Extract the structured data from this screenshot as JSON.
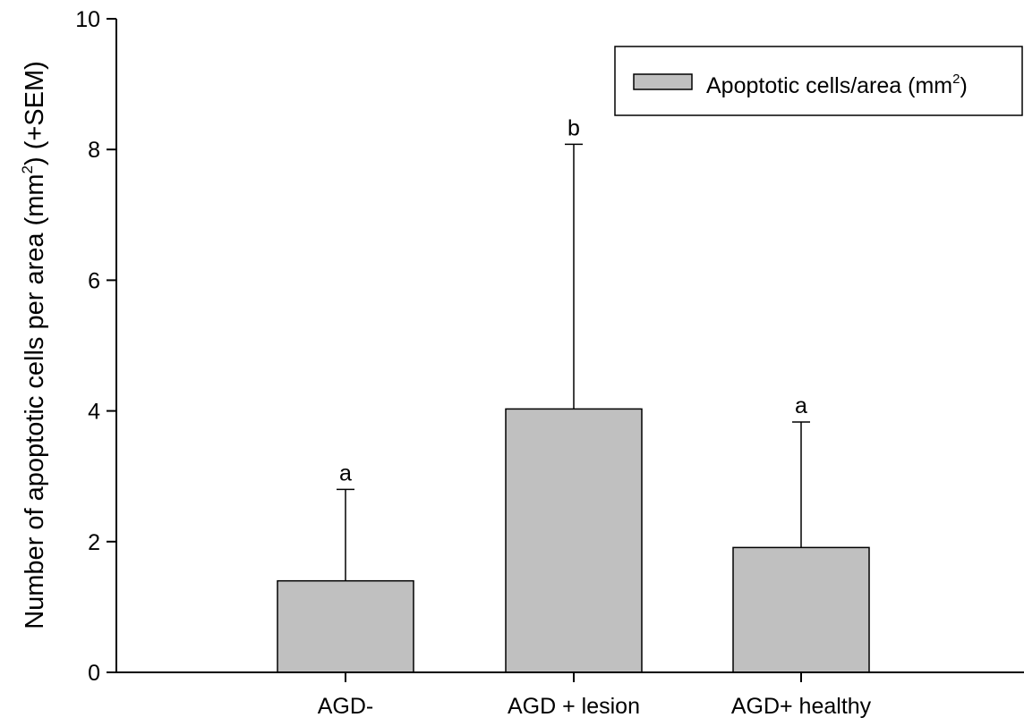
{
  "chart_data": {
    "type": "bar",
    "title": "",
    "xlabel": "",
    "ylabel": "Number of apoptotic cells per area (mm²) (+SEM)",
    "ylabel_parts": {
      "pre": "Number of apoptotic cells per area (mm",
      "sup": "2",
      "post": ") (+SEM)"
    },
    "ylim": [
      0,
      10
    ],
    "yticks": [
      0,
      2,
      4,
      6,
      8,
      10
    ],
    "categories": [
      "AGD-",
      "AGD + lesion",
      "AGD+ healthy"
    ],
    "series": [
      {
        "name": "Apoptotic cells/area (mm²)",
        "values": [
          1.4,
          4.03,
          1.91
        ],
        "errors": [
          1.4,
          4.05,
          1.92
        ],
        "color": "#c0c0c0"
      }
    ],
    "annotations": [
      "a",
      "b",
      "a"
    ],
    "legend": {
      "position": "top-right",
      "label_parts": {
        "pre": "Apoptotic cells/area (mm",
        "sup": "2",
        "post": ")"
      }
    },
    "grid": false
  }
}
